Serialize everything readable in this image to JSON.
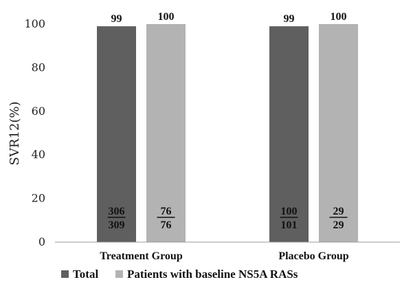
{
  "chart_data": {
    "type": "bar",
    "title": "",
    "xlabel": "",
    "ylabel": "SVR12(%)",
    "ylim": [
      0,
      100
    ],
    "yticks": [
      0,
      20,
      40,
      60,
      80,
      100
    ],
    "grid": false,
    "legend_position": "bottom",
    "categories": [
      "Treatment Group",
      "Placebo Group"
    ],
    "series": [
      {
        "name": "Total",
        "color": "#5f5f5f",
        "values": [
          99,
          99
        ],
        "fractions": [
          {
            "numerator": "306",
            "denominator": "309"
          },
          {
            "numerator": "100",
            "denominator": "101"
          }
        ]
      },
      {
        "name": "Patients with baseline NS5A RASs",
        "color": "#b3b3b3",
        "values": [
          100,
          100
        ],
        "fractions": [
          {
            "numerator": "76",
            "denominator": "76"
          },
          {
            "numerator": "29",
            "denominator": "29"
          }
        ]
      }
    ]
  }
}
